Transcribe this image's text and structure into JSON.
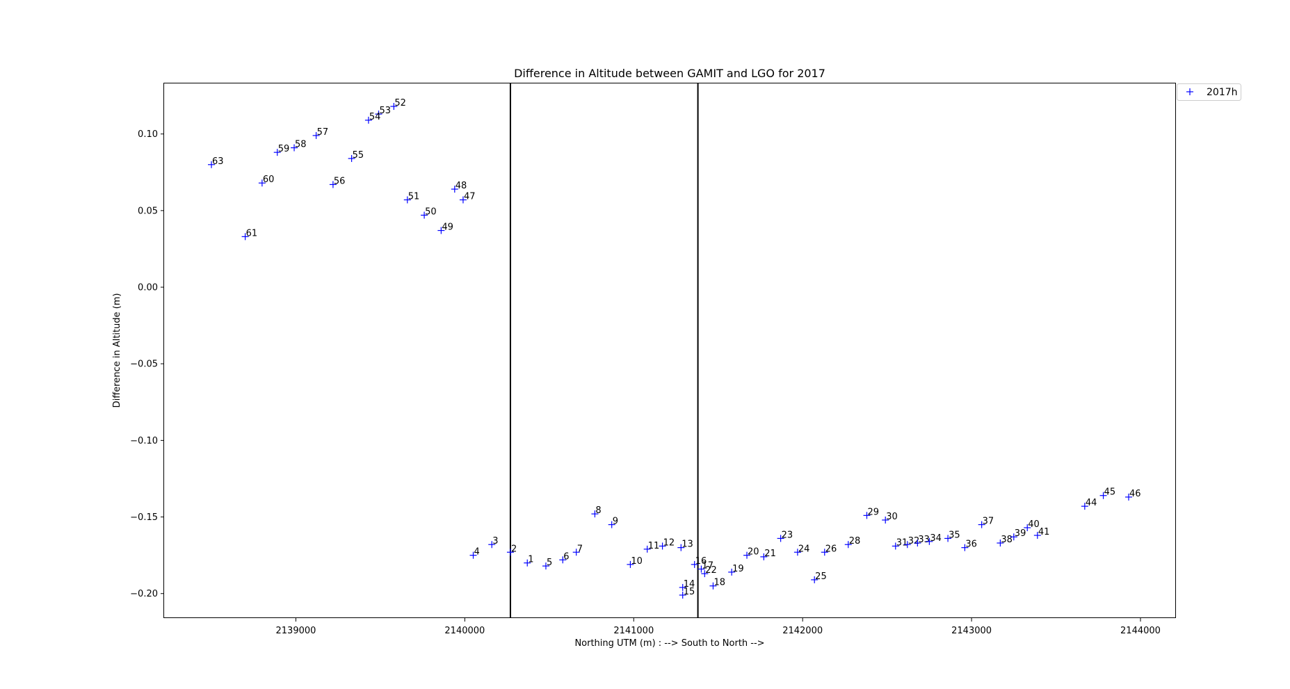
{
  "chart_data": {
    "type": "scatter",
    "title": "Difference in Altitude between GAMIT and LGO for 2017",
    "xlabel": "Northing UTM (m) : --> South to North -->",
    "ylabel": "Difference in Altitude (m)",
    "xlim": [
      2138220,
      2144210
    ],
    "ylim": [
      -0.216,
      0.133
    ],
    "xticks": [
      2139000,
      2140000,
      2141000,
      2142000,
      2143000,
      2144000
    ],
    "xtick_labels": [
      "2139000",
      "2140000",
      "2141000",
      "2142000",
      "2143000",
      "2144000"
    ],
    "yticks": [
      0.1,
      0.05,
      0.0,
      -0.05,
      -0.1,
      -0.15,
      -0.2
    ],
    "ytick_labels": [
      "0.10",
      "0.05",
      "0.00",
      "−0.05",
      "−0.10",
      "−0.15",
      "−0.20"
    ],
    "vlines": [
      2140270,
      2141380
    ],
    "grid": false,
    "legend_position": "outside top-right",
    "series": [
      {
        "name": "2017h",
        "marker": "+",
        "color": "#0000ff",
        "points": [
          {
            "label": "1",
            "x": 2140370,
            "y": -0.18
          },
          {
            "label": "2",
            "x": 2140270,
            "y": -0.173
          },
          {
            "label": "3",
            "x": 2140160,
            "y": -0.168
          },
          {
            "label": "4",
            "x": 2140050,
            "y": -0.175
          },
          {
            "label": "5",
            "x": 2140480,
            "y": -0.182
          },
          {
            "label": "6",
            "x": 2140580,
            "y": -0.178
          },
          {
            "label": "7",
            "x": 2140660,
            "y": -0.173
          },
          {
            "label": "8",
            "x": 2140770,
            "y": -0.148
          },
          {
            "label": "9",
            "x": 2140870,
            "y": -0.155
          },
          {
            "label": "10",
            "x": 2140980,
            "y": -0.181
          },
          {
            "label": "11",
            "x": 2141080,
            "y": -0.171
          },
          {
            "label": "12",
            "x": 2141170,
            "y": -0.169
          },
          {
            "label": "13",
            "x": 2141280,
            "y": -0.17
          },
          {
            "label": "14",
            "x": 2141290,
            "y": -0.196
          },
          {
            "label": "15",
            "x": 2141290,
            "y": -0.201
          },
          {
            "label": "16",
            "x": 2141360,
            "y": -0.181
          },
          {
            "label": "17",
            "x": 2141400,
            "y": -0.184
          },
          {
            "label": "22",
            "x": 2141420,
            "y": -0.187
          },
          {
            "label": "18",
            "x": 2141470,
            "y": -0.195
          },
          {
            "label": "19",
            "x": 2141580,
            "y": -0.186
          },
          {
            "label": "20",
            "x": 2141670,
            "y": -0.175
          },
          {
            "label": "21",
            "x": 2141770,
            "y": -0.176
          },
          {
            "label": "23",
            "x": 2141870,
            "y": -0.164
          },
          {
            "label": "24",
            "x": 2141970,
            "y": -0.173
          },
          {
            "label": "25",
            "x": 2142070,
            "y": -0.191
          },
          {
            "label": "26",
            "x": 2142130,
            "y": -0.173
          },
          {
            "label": "28",
            "x": 2142270,
            "y": -0.168
          },
          {
            "label": "29",
            "x": 2142380,
            "y": -0.149
          },
          {
            "label": "30",
            "x": 2142490,
            "y": -0.152
          },
          {
            "label": "31",
            "x": 2142550,
            "y": -0.169
          },
          {
            "label": "32",
            "x": 2142620,
            "y": -0.168
          },
          {
            "label": "33",
            "x": 2142680,
            "y": -0.167
          },
          {
            "label": "34",
            "x": 2142750,
            "y": -0.166
          },
          {
            "label": "35",
            "x": 2142860,
            "y": -0.164
          },
          {
            "label": "36",
            "x": 2142960,
            "y": -0.17
          },
          {
            "label": "37",
            "x": 2143060,
            "y": -0.155
          },
          {
            "label": "38",
            "x": 2143170,
            "y": -0.167
          },
          {
            "label": "39",
            "x": 2143250,
            "y": -0.163
          },
          {
            "label": "40",
            "x": 2143330,
            "y": -0.157
          },
          {
            "label": "41",
            "x": 2143390,
            "y": -0.162
          },
          {
            "label": "44",
            "x": 2143670,
            "y": -0.143
          },
          {
            "label": "45",
            "x": 2143780,
            "y": -0.136
          },
          {
            "label": "46",
            "x": 2143930,
            "y": -0.137
          },
          {
            "label": "47",
            "x": 2139990,
            "y": 0.057
          },
          {
            "label": "48",
            "x": 2139940,
            "y": 0.064
          },
          {
            "label": "49",
            "x": 2139860,
            "y": 0.037
          },
          {
            "label": "50",
            "x": 2139760,
            "y": 0.047
          },
          {
            "label": "51",
            "x": 2139660,
            "y": 0.057
          },
          {
            "label": "52",
            "x": 2139580,
            "y": 0.118
          },
          {
            "label": "53",
            "x": 2139490,
            "y": 0.113
          },
          {
            "label": "54",
            "x": 2139430,
            "y": 0.109
          },
          {
            "label": "55",
            "x": 2139330,
            "y": 0.084
          },
          {
            "label": "56",
            "x": 2139220,
            "y": 0.067
          },
          {
            "label": "57",
            "x": 2139120,
            "y": 0.099
          },
          {
            "label": "58",
            "x": 2138990,
            "y": 0.091
          },
          {
            "label": "59",
            "x": 2138890,
            "y": 0.088
          },
          {
            "label": "60",
            "x": 2138800,
            "y": 0.068
          },
          {
            "label": "61",
            "x": 2138700,
            "y": 0.033
          },
          {
            "label": "63",
            "x": 2138500,
            "y": 0.08
          }
        ]
      }
    ]
  }
}
